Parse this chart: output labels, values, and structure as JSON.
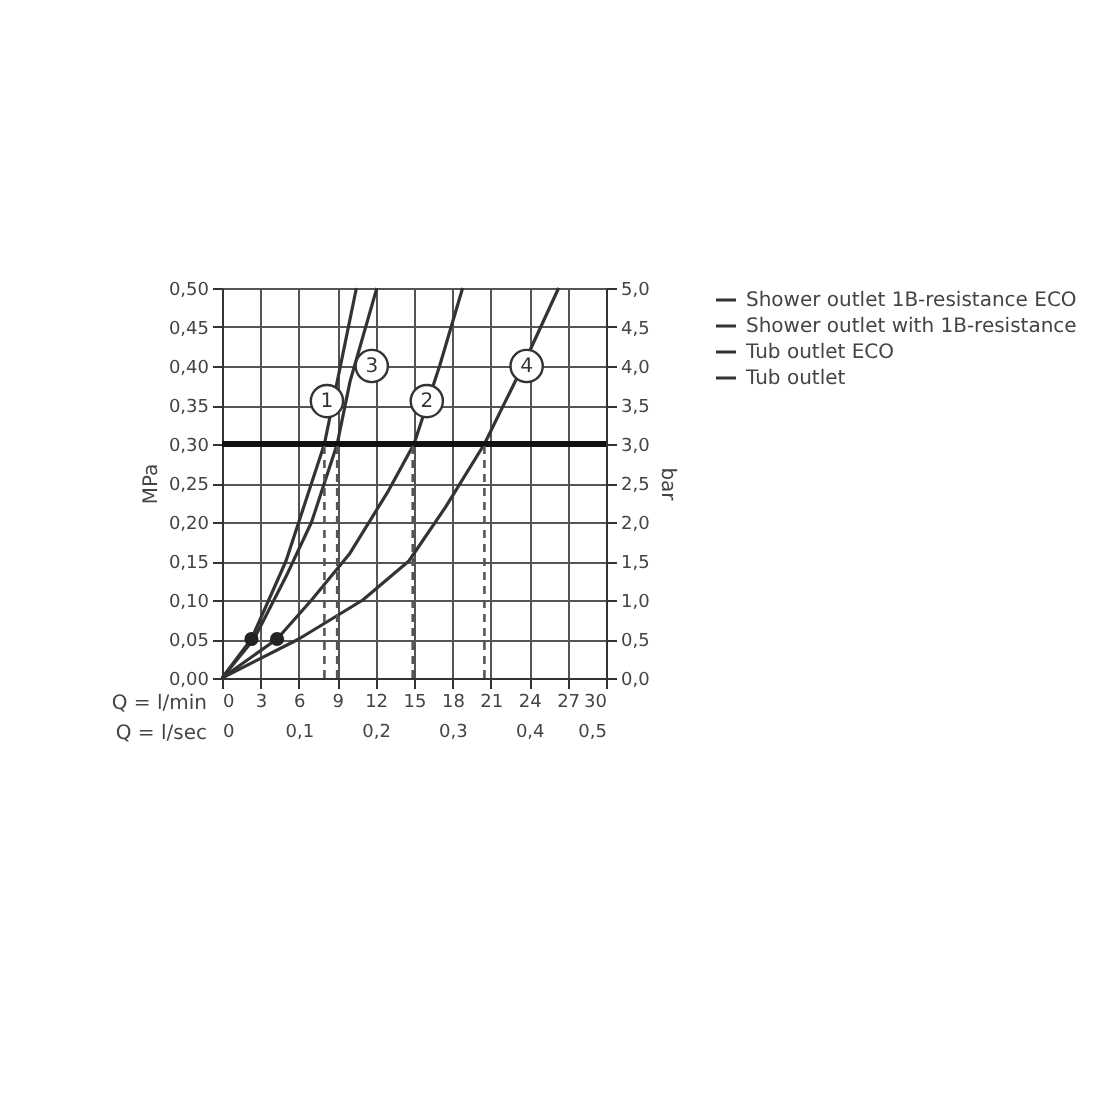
{
  "chart_data": {
    "type": "line",
    "xlabel": "Q = l/min",
    "x2label": "Q = l/sec",
    "ylabel": "MPa",
    "y2label": "bar",
    "xlim": [
      0,
      30
    ],
    "xticks": [
      0,
      3,
      6,
      9,
      12,
      15,
      18,
      21,
      24,
      27,
      30
    ],
    "x2lim": [
      0,
      0.5
    ],
    "x2ticks": [
      0,
      {
        "value": 0.1,
        "label": "0,1"
      },
      {
        "value": 0.2,
        "label": "0,2"
      },
      {
        "value": 0.3,
        "label": "0,3"
      },
      {
        "value": 0.4,
        "label": "0,4"
      },
      {
        "value": 0.5,
        "label": "0,5"
      }
    ],
    "ylim": [
      0,
      0.5
    ],
    "yticks": [
      {
        "value": 0,
        "label": "0,00"
      },
      {
        "value": 0.05,
        "label": "0,05"
      },
      {
        "value": 0.1,
        "label": "0,10"
      },
      {
        "value": 0.15,
        "label": "0,15"
      },
      {
        "value": 0.2,
        "label": "0,20"
      },
      {
        "value": 0.25,
        "label": "0,25"
      },
      {
        "value": 0.3,
        "label": "0,30"
      },
      {
        "value": 0.35,
        "label": "0,35"
      },
      {
        "value": 0.4,
        "label": "0,40"
      },
      {
        "value": 0.45,
        "label": "0,45"
      },
      {
        "value": 0.5,
        "label": "0,50"
      }
    ],
    "y2lim": [
      0,
      5
    ],
    "y2ticks": [
      {
        "value": 0,
        "label": "0,0"
      },
      {
        "value": 0.5,
        "label": "0,5"
      },
      {
        "value": 1,
        "label": "1,0"
      },
      {
        "value": 1.5,
        "label": "1,5"
      },
      {
        "value": 2,
        "label": "2,0"
      },
      {
        "value": 2.5,
        "label": "2,5"
      },
      {
        "value": 3,
        "label": "3,0"
      },
      {
        "value": 3.5,
        "label": "3,5"
      },
      {
        "value": 4,
        "label": "4,0"
      },
      {
        "value": 4.5,
        "label": "4,5"
      },
      {
        "value": 5,
        "label": "5,0"
      }
    ],
    "grid": true,
    "legend": "right",
    "marker": "none",
    "line_style": "solid",
    "series": [
      {
        "name": "Shower outlet 1B-resistance ECO",
        "color": "#333333",
        "x": [
          0,
          2.3,
          5,
          7,
          8,
          9,
          10.5
        ],
        "values": [
          0,
          0.05,
          0.15,
          0.25,
          0.3,
          0.38,
          0.5
        ]
      },
      {
        "name": "Shower outlet with 1B-resistance",
        "color": "#333333",
        "x": [
          0,
          4.3,
          7,
          10,
          13,
          15,
          17,
          18.8
        ],
        "values": [
          0,
          0.05,
          0.1,
          0.16,
          0.24,
          0.3,
          0.4,
          0.5
        ]
      },
      {
        "name": "Tub outlet ECO",
        "color": "#333333",
        "x": [
          0,
          2.5,
          5,
          7,
          9,
          10,
          12.1
        ],
        "values": [
          0,
          0.05,
          0.13,
          0.2,
          0.3,
          0.38,
          0.5
        ]
      },
      {
        "name": "Tub outlet",
        "color": "#333333",
        "x": [
          0,
          6,
          11,
          14.6,
          17.5,
          20.5,
          23.5,
          26.3
        ],
        "values": [
          0,
          0.05,
          0.1,
          0.15,
          0.22,
          0.3,
          0.4,
          0.5
        ]
      },
      {
        "type": "scatter",
        "color": "#222222",
        "marker": "circle",
        "x": [
          2.3,
          4.3
        ],
        "values": [
          0.05,
          0.05
        ]
      }
    ],
    "ref_lines": [
      {
        "axis": "y",
        "value": 0.3,
        "color": "#111111",
        "line_style": "solid"
      },
      {
        "axis": "x",
        "value": 8,
        "color": "#555555",
        "line_style": "dashed"
      },
      {
        "axis": "x",
        "value": 9,
        "color": "#555555",
        "line_style": "dashed"
      },
      {
        "axis": "x",
        "value": 14.9,
        "color": "#555555",
        "line_style": "dashed"
      },
      {
        "axis": "x",
        "value": 20.5,
        "color": "#555555",
        "line_style": "dashed"
      }
    ],
    "annotations": [
      {
        "text": "1",
        "x": 8.2,
        "y": 0.355
      },
      {
        "text": "3",
        "x": 11.7,
        "y": 0.4
      },
      {
        "text": "2",
        "x": 16,
        "y": 0.355
      },
      {
        "text": "4",
        "x": 23.8,
        "y": 0.4
      }
    ]
  }
}
